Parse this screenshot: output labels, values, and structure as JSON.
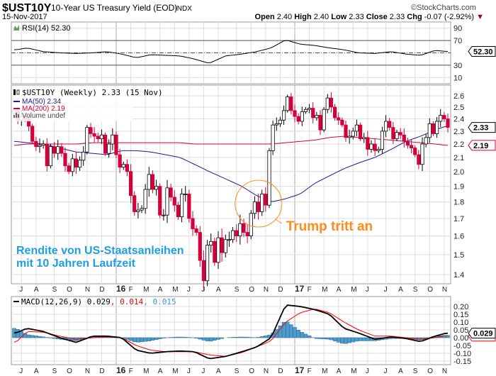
{
  "header": {
    "symbol": "$UST10Y",
    "name": "10-Year US Treasury Yield (EOD)",
    "exchange": "INDX",
    "date": "15-Nov-2017",
    "brand": "©StockCharts.com",
    "open_label": "Open",
    "open": "2.40",
    "high_label": "High",
    "high": "2.40",
    "low_label": "Low",
    "low": "2.33",
    "close_label": "Close",
    "close": "2.33",
    "chg_label": "Chg",
    "chg": "-0.07 (-2.92%)"
  },
  "colors": {
    "up": "#000000",
    "down": "#d4003a",
    "ma50": "#1a1a9a",
    "ma200": "#d4003a",
    "macd": "#000000",
    "signal": "#ff0000",
    "histogram": "#4b9ccc",
    "annotation_orange": "#ff8c1a",
    "annotation_blue": "#1e9ee0"
  },
  "rsi_panel": {
    "label": "RSI(14) 52.30",
    "value_box": "52.30"
  },
  "main_panel": {
    "legend_price": "$UST10Y (Weekly) 2.33 (15 Nov)",
    "legend_ma50": "MA(50) 2.34",
    "legend_ma200": "MA(200) 2.19",
    "legend_volume": "Volume undef",
    "close_box": "2.33",
    "ma200_box": "2.19",
    "annotation_trump": "Trump tritt an",
    "annotation_line1": "Rendite von US-Staatsanleihen",
    "annotation_line2": "mit 10 Jahren Laufzeit"
  },
  "macd_panel": {
    "label": "MACD(12,26,9) 0.029",
    "signal_label": ", 0.014",
    "hist_label": ", 0.015",
    "value_box": "0.029"
  },
  "chart_data": [
    {
      "type": "candlestick",
      "title": "$UST10Y (Weekly)",
      "scale": "log",
      "ylim": [
        1.35,
        2.68
      ],
      "y_ticks": [
        2.6,
        2.5,
        2.4,
        2.3,
        2.2,
        2.1,
        2.0,
        1.9,
        1.8,
        1.7,
        1.6,
        1.5,
        1.4
      ],
      "x_ticks": [
        "J",
        "A",
        "S",
        "O",
        "N",
        "D",
        "16",
        "F",
        "M",
        "A",
        "M",
        "J",
        "J",
        "A",
        "S",
        "O",
        "N",
        "D",
        "17",
        "F",
        "M",
        "A",
        "M",
        "J",
        "J",
        "A",
        "S",
        "O",
        "N"
      ],
      "grid": true,
      "weekly_close": [
        2.47,
        2.39,
        2.42,
        2.4,
        2.34,
        2.22,
        2.18,
        2.19,
        2.2,
        2.04,
        2.18,
        2.13,
        2.18,
        2.13,
        2.04,
        2.0,
        2.09,
        2.03,
        2.08,
        2.14,
        2.33,
        2.28,
        2.26,
        2.24,
        2.27,
        2.13,
        2.2,
        2.27,
        2.12,
        2.03,
        2.05,
        2.0,
        1.84,
        1.74,
        1.75,
        1.76,
        1.88,
        1.98,
        1.88,
        1.9,
        1.72,
        1.72,
        1.89,
        1.83,
        1.78,
        1.71,
        1.85,
        1.85,
        1.7,
        1.64,
        1.62,
        1.47,
        1.37,
        1.55,
        1.57,
        1.46,
        1.59,
        1.51,
        1.58,
        1.58,
        1.63,
        1.6,
        1.67,
        1.62,
        1.6,
        1.73,
        1.8,
        1.74,
        1.85,
        1.78,
        2.15,
        2.35,
        2.36,
        2.39,
        2.47,
        2.59,
        2.47,
        2.42,
        2.38,
        2.46,
        2.48,
        2.49,
        2.41,
        2.43,
        2.31,
        2.48,
        2.58,
        2.5,
        2.41,
        2.39,
        2.35,
        2.25,
        2.26,
        2.3,
        2.35,
        2.24,
        2.25,
        2.16,
        2.2,
        2.15,
        2.16,
        2.3,
        2.38,
        2.33,
        2.24,
        2.29,
        2.27,
        2.22,
        2.19,
        2.17,
        2.12,
        2.05,
        2.2,
        2.25,
        2.36,
        2.28,
        2.38,
        2.43,
        2.4,
        2.33
      ],
      "series": [
        {
          "name": "MA(50)",
          "monthly": [
            2.22,
            2.21,
            2.2,
            2.17,
            2.14,
            2.13,
            2.12,
            2.15,
            2.15,
            2.14,
            2.12,
            2.1,
            2.05,
            2.0,
            1.95,
            1.9,
            1.84,
            1.8,
            1.82,
            1.85,
            1.92,
            1.97,
            2.02,
            2.06,
            2.1,
            2.16,
            2.22,
            2.26,
            2.31,
            2.34
          ]
        },
        {
          "name": "MA(200)",
          "monthly": [
            2.19,
            2.2,
            2.2,
            2.2,
            2.2,
            2.21,
            2.21,
            2.21,
            2.21,
            2.21,
            2.21,
            2.21,
            2.2,
            2.2,
            2.2,
            2.2,
            2.2,
            2.2,
            2.21,
            2.22,
            2.23,
            2.25,
            2.26,
            2.25,
            2.24,
            2.23,
            2.22,
            2.21,
            2.2,
            2.19
          ]
        }
      ]
    },
    {
      "type": "line",
      "title": "RSI(14)",
      "ylim": [
        0,
        100
      ],
      "y_ticks": [
        90,
        70,
        30,
        10
      ],
      "reference_lines": [
        70,
        50,
        30
      ],
      "monthly": [
        55,
        58,
        52,
        50,
        49,
        50,
        52,
        48,
        42,
        47,
        46,
        45,
        40,
        33,
        45,
        48,
        52,
        58,
        71,
        64,
        62,
        58,
        55,
        50,
        49,
        52,
        48,
        46,
        54,
        52.3
      ]
    },
    {
      "type": "line",
      "title": "MACD(12,26,9)",
      "ylim": [
        -0.16,
        0.23
      ],
      "y_ticks": [
        0.2,
        0.15,
        0.1,
        0.05,
        0.0,
        -0.05,
        -0.1,
        -0.15
      ],
      "series": [
        {
          "name": "MACD",
          "monthly": [
            0.03,
            0.06,
            0.04,
            0.0,
            -0.03,
            0.01,
            0.01,
            0.0,
            -0.08,
            -0.1,
            -0.09,
            -0.085,
            -0.09,
            -0.135,
            -0.12,
            -0.09,
            -0.06,
            0.0,
            0.21,
            0.2,
            0.18,
            0.15,
            0.06,
            0.03,
            -0.01,
            0.005,
            -0.005,
            -0.025,
            0.01,
            0.029
          ]
        },
        {
          "name": "Signal",
          "monthly": [
            -0.03,
            0.04,
            0.035,
            0.01,
            -0.01,
            0.0,
            0.005,
            0.0,
            -0.05,
            -0.08,
            -0.09,
            -0.09,
            -0.09,
            -0.11,
            -0.12,
            -0.095,
            -0.06,
            -0.02,
            0.1,
            0.16,
            0.185,
            0.16,
            0.1,
            0.05,
            0.01,
            0.01,
            0.0,
            -0.01,
            0.0,
            0.014
          ]
        }
      ]
    }
  ]
}
